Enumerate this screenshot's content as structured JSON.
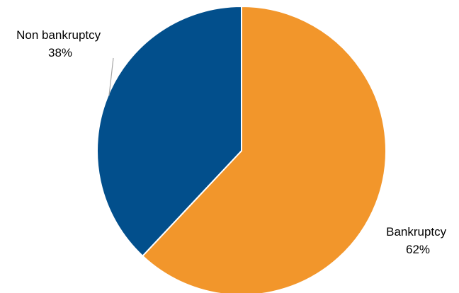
{
  "chart_data": {
    "type": "pie",
    "slices": [
      {
        "label": "Bankruptcy",
        "value": 62,
        "value_label": "62%",
        "color": "#F2962B"
      },
      {
        "label": "Non bankruptcy",
        "value": 38,
        "value_label": "38%",
        "color": "#024F8C"
      }
    ],
    "start_direction": "top, clockwise",
    "slice_border_color": "#ffffff",
    "leader_line_color": "#A6A6A6"
  }
}
